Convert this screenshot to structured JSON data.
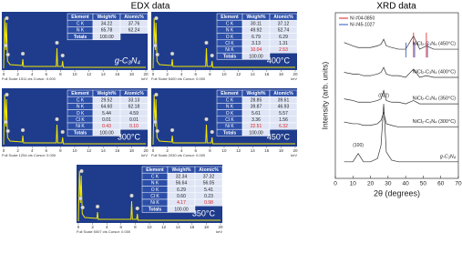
{
  "edx": {
    "title": "EDX data",
    "xticks": [
      0,
      2,
      4,
      6,
      8,
      10,
      12,
      14,
      16,
      18,
      20
    ],
    "unit": "keV",
    "background": "#1f3c8c",
    "spectrum_color": "#f2e600",
    "highlight_color": "#e02020",
    "panels": [
      {
        "label": "g-C₃N₄",
        "footer": "Full Scale 1511 cts Cursor: 0.000",
        "header": [
          "Element",
          "Weight%",
          "Atomic%"
        ],
        "rows": [
          [
            "C K",
            "34.22",
            "37.76"
          ],
          [
            "N K",
            "65.78",
            "62.24"
          ],
          [
            "Totals",
            "100.00"
          ]
        ]
      },
      {
        "label": "400°C",
        "footer": "Full Scale 5400 cts Cursor: 0.000",
        "highlight_row": 4,
        "header": [
          "Element",
          "Weight%",
          "Atomic%"
        ],
        "rows": [
          [
            "C K",
            "30.11",
            "37.12"
          ],
          [
            "N K",
            "49.92",
            "52.74"
          ],
          [
            "O K",
            "6.79",
            "6.29"
          ],
          [
            "Cl K",
            "3.13",
            "1.31"
          ],
          [
            "Ni K",
            "10.04",
            "2.53"
          ],
          [
            "Totals",
            "100.00"
          ]
        ]
      },
      {
        "label": "300°C",
        "footer": "Full Scale 1254 cts Cursor: 0.000",
        "highlight_row": 4,
        "header": [
          "Element",
          "Weight%",
          "Atomic%"
        ],
        "rows": [
          [
            "C K",
            "29.52",
            "33.13"
          ],
          [
            "N K",
            "64.60",
            "62.18"
          ],
          [
            "O K",
            "5.44",
            "4.59"
          ],
          [
            "Cl K",
            "0.01",
            "0.01"
          ],
          [
            "Ni K",
            "0.43",
            "0.10"
          ],
          [
            "Totals",
            "100.00"
          ]
        ]
      },
      {
        "label": "450°C",
        "footer": "Full Scale 2030 cts Cursor: 0.000",
        "highlight_row": 4,
        "header": [
          "Element",
          "Weight%",
          "Atomic%"
        ],
        "rows": [
          [
            "C K",
            "28.85",
            "39.61"
          ],
          [
            "N K",
            "39.87",
            "46.93"
          ],
          [
            "O K",
            "5.61",
            "5.57"
          ],
          [
            "Cl K",
            "3.36",
            "1.56"
          ],
          [
            "Ni K",
            "22.51",
            "6.32"
          ],
          [
            "Totals",
            "100.00"
          ]
        ]
      },
      {
        "label": "350°C",
        "footer": "Full Scale 5007 cts Cursor: 0.000",
        "highlight_row": 4,
        "header": [
          "Element",
          "Weight%",
          "Atomic%"
        ],
        "rows": [
          [
            "C K",
            "32.34",
            "37.32"
          ],
          [
            "N K",
            "56.64",
            "56.05"
          ],
          [
            "O K",
            "6.29",
            "5.41"
          ],
          [
            "Cl K",
            "0.60",
            "0.23"
          ],
          [
            "Ni K",
            "4.17",
            "0.98"
          ],
          [
            "Totals",
            "100.00"
          ]
        ]
      }
    ]
  },
  "chart_data": {
    "type": "line",
    "title": "XRD data",
    "xlabel": "2θ (degrees)",
    "ylabel": "Intensity (arb. units)",
    "x": [
      5,
      10,
      13,
      16,
      20,
      24,
      26,
      27.5,
      29,
      32,
      36,
      40,
      44.5,
      48,
      51.8,
      56,
      60,
      65,
      70
    ],
    "xlim": [
      0,
      70
    ],
    "xticks": [
      0,
      10,
      20,
      30,
      40,
      50,
      60,
      70
    ],
    "ylim": [
      0,
      100
    ],
    "legend": "upper left",
    "series": [
      {
        "name": "NiCl₂-C₃N₄ (450°C)",
        "color": "#333333",
        "values": [
          82,
          80,
          79,
          79,
          79,
          80,
          81,
          84,
          80,
          79,
          78,
          78,
          86,
          78,
          80,
          78,
          78,
          78,
          78
        ]
      },
      {
        "name": "NiCl₂-C₃N₄ (400°C)",
        "color": "#333333",
        "values": [
          64,
          63,
          63,
          62,
          62,
          63,
          64,
          67,
          63,
          62,
          62,
          61,
          66,
          61,
          62,
          61,
          61,
          61,
          61
        ]
      },
      {
        "name": "NiCl₂-C₃N₄ (350°C)",
        "color": "#333333",
        "values": [
          48,
          47,
          46,
          46,
          46,
          47,
          48,
          53,
          47,
          46,
          46,
          45,
          47,
          45,
          45,
          45,
          45,
          45,
          45
        ]
      },
      {
        "name": "NiCl₂-C₃N₄ (300°C)",
        "color": "#333333",
        "values": [
          34,
          33,
          33,
          32,
          32,
          33,
          35,
          40,
          33,
          32,
          31,
          31,
          31,
          31,
          31,
          31,
          31,
          31,
          31
        ]
      },
      {
        "name": "g-C₃N₄",
        "color": "#333333",
        "values": [
          10,
          10,
          15,
          10,
          10,
          12,
          20,
          45,
          16,
          11,
          10,
          10,
          10,
          10,
          10,
          10,
          10,
          10,
          10
        ]
      }
    ],
    "references": [
      {
        "name": "Ni #04-0850",
        "color": "#e02020",
        "peaks": [
          44.5,
          51.8
        ]
      },
      {
        "name": "Ni #45-1027",
        "color": "#3050c0",
        "peaks": [
          39.5,
          44.5,
          51.8
        ]
      }
    ],
    "annotations": [
      {
        "text": "(100)",
        "x": 13,
        "y": 20
      },
      {
        "text": "(002)",
        "x": 27.5,
        "y": 50
      }
    ]
  }
}
